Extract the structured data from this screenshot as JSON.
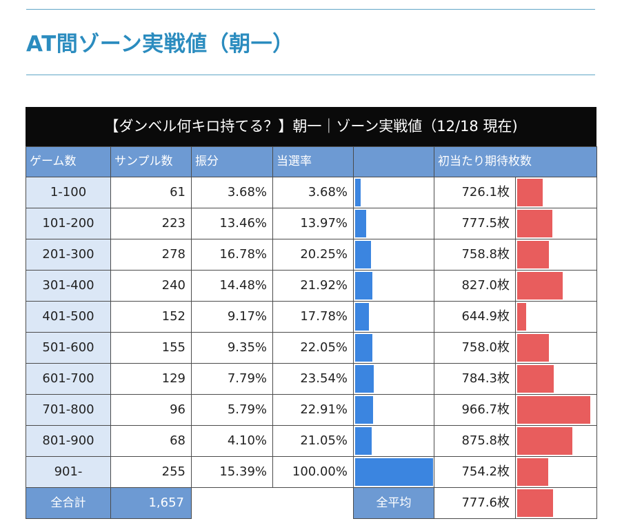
{
  "page": {
    "title": "AT間ゾーン実戦値（朝一）"
  },
  "table": {
    "caption": "【ダンベル何キロ持てる？】朝一｜ゾーン実戦値（12/18 現在)",
    "headers": [
      "ゲーム数",
      "サンプル数",
      "振分",
      "当選率",
      "",
      "初当たり期待枚数"
    ],
    "rows": [
      {
        "zone": "1-100",
        "samples": "61",
        "dist": "3.68%",
        "rate": "3.68%",
        "rate_value": 3.68,
        "expect": "726.1枚",
        "expect_value": 726.1
      },
      {
        "zone": "101-200",
        "samples": "223",
        "dist": "13.46%",
        "rate": "13.97%",
        "rate_value": 13.97,
        "expect": "777.5枚",
        "expect_value": 777.5
      },
      {
        "zone": "201-300",
        "samples": "278",
        "dist": "16.78%",
        "rate": "20.25%",
        "rate_value": 20.25,
        "expect": "758.8枚",
        "expect_value": 758.8
      },
      {
        "zone": "301-400",
        "samples": "240",
        "dist": "14.48%",
        "rate": "21.92%",
        "rate_value": 21.92,
        "expect": "827.0枚",
        "expect_value": 827.0
      },
      {
        "zone": "401-500",
        "samples": "152",
        "dist": "9.17%",
        "rate": "17.78%",
        "rate_value": 17.78,
        "expect": "644.9枚",
        "expect_value": 644.9
      },
      {
        "zone": "501-600",
        "samples": "155",
        "dist": "9.35%",
        "rate": "22.05%",
        "rate_value": 22.05,
        "expect": "758.0枚",
        "expect_value": 758.0
      },
      {
        "zone": "601-700",
        "samples": "129",
        "dist": "7.79%",
        "rate": "23.54%",
        "rate_value": 23.54,
        "expect": "784.3枚",
        "expect_value": 784.3
      },
      {
        "zone": "701-800",
        "samples": "96",
        "dist": "5.79%",
        "rate": "22.91%",
        "rate_value": 22.91,
        "expect": "966.7枚",
        "expect_value": 966.7
      },
      {
        "zone": "801-900",
        "samples": "68",
        "dist": "4.10%",
        "rate": "21.05%",
        "rate_value": 21.05,
        "expect": "875.8枚",
        "expect_value": 875.8
      },
      {
        "zone": "901-",
        "samples": "255",
        "dist": "15.39%",
        "rate": "100.00%",
        "rate_value": 100.0,
        "expect": "754.2枚",
        "expect_value": 754.2
      }
    ],
    "totals": {
      "total_label": "全合計",
      "total_samples": "1,657",
      "avg_label": "全平均",
      "avg_expect": "777.6枚",
      "avg_expect_value": 777.6
    }
  },
  "colors": {
    "rate_bar": "#3b85e0",
    "expect_bar": "#e85d5d",
    "header_bg": "#6d9ad3",
    "zone_bg": "#dbe7f6",
    "caption_bg": "#0a0a0a",
    "title_color": "#2b8cbf"
  }
}
